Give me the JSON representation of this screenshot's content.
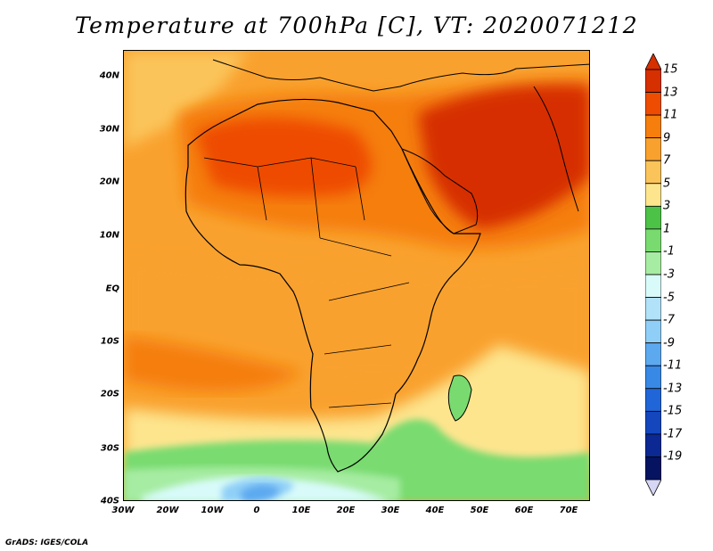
{
  "title": "Temperature at 700hPa [C], VT: 2020071212",
  "credit": "GrADS: IGES/COLA",
  "map": {
    "lat_ticks": [
      "40N",
      "30N",
      "20N",
      "10N",
      "EQ",
      "10S",
      "20S",
      "30S",
      "40S"
    ],
    "lon_ticks": [
      "30W",
      "20W",
      "10W",
      "0",
      "10E",
      "20E",
      "30E",
      "40E",
      "50E",
      "60E",
      "70E"
    ],
    "lon_range": [
      -30,
      75
    ],
    "lat_range": [
      -40,
      44
    ]
  },
  "colorbar": {
    "labels": [
      "15",
      "13",
      "11",
      "9",
      "7",
      "5",
      "3",
      "1",
      "-1",
      "-3",
      "-5",
      "-7",
      "-9",
      "-11",
      "-13",
      "-15",
      "-17",
      "-19"
    ],
    "colors": [
      "#d62f00",
      "#ee4c00",
      "#f57e0c",
      "#f9a12e",
      "#fbc45a",
      "#fde58e",
      "#4cc247",
      "#79db6f",
      "#a6eca2",
      "#d8fbfa",
      "#b1e2f9",
      "#8fcff7",
      "#5da9f0",
      "#3888e6",
      "#2066d8",
      "#1446be",
      "#0b2893",
      "#061360"
    ]
  }
}
